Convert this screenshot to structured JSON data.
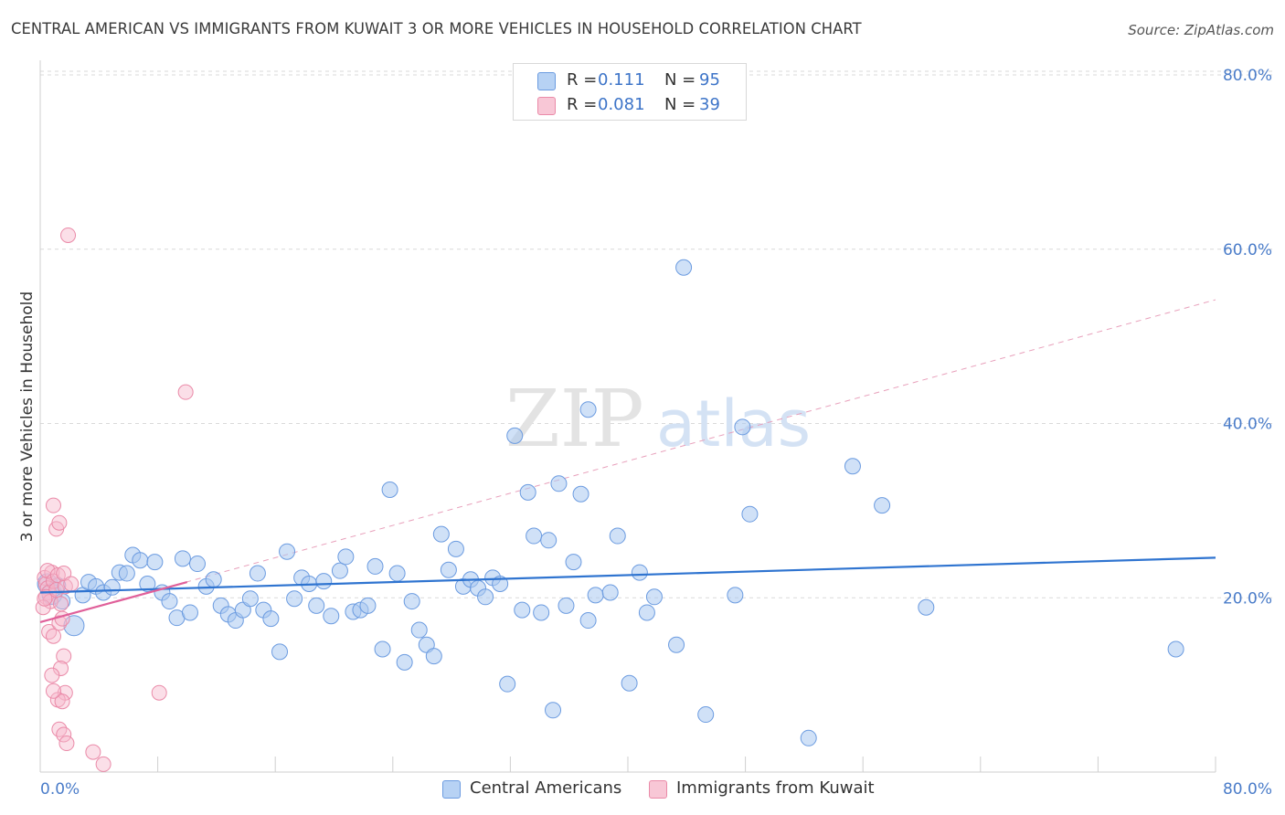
{
  "title": "CENTRAL AMERICAN VS IMMIGRANTS FROM KUWAIT 3 OR MORE VEHICLES IN HOUSEHOLD CORRELATION CHART",
  "source": "Source: ZipAtlas.com",
  "watermark": {
    "zip": "ZIP",
    "atlas": "atlas"
  },
  "legend_top": [
    {
      "r_label": "R =",
      "r_value": "0.111",
      "n_label": "N =",
      "n_value": "95"
    },
    {
      "r_label": "R =",
      "r_value": "0.081",
      "n_label": "N =",
      "n_value": "39"
    }
  ],
  "legend_bottom": [
    {
      "label": "Central Americans"
    },
    {
      "label": "Immigrants from Kuwait"
    }
  ],
  "colors": {
    "blue_fill": "#a9c8f0",
    "blue_stroke": "#6b9be0",
    "blue_line": "#2f74d0",
    "pink_fill": "#f6b8cb",
    "pink_stroke": "#ea8aa8",
    "pink_line": "#e0609a",
    "grid": "#d9d9d9",
    "tick_text": "#4a7cc9"
  },
  "chart_data": {
    "type": "scatter",
    "title": "CENTRAL AMERICAN VS IMMIGRANTS FROM KUWAIT 3 OR MORE VEHICLES IN HOUSEHOLD CORRELATION CHART",
    "xlabel": "",
    "ylabel": "3 or more Vehicles in Household",
    "xlim": [
      0,
      80
    ],
    "ylim": [
      0,
      80
    ],
    "y_ticks": [
      20,
      40,
      60,
      80
    ],
    "y_tick_labels": [
      "20.0%",
      "40.0%",
      "60.0%",
      "80.0%"
    ],
    "x_tick_labels": [
      "0.0%",
      "80.0%"
    ],
    "grid": true,
    "legend_position": "top-center",
    "series": [
      {
        "name": "Central Americans",
        "r": 0.111,
        "n": 95,
        "trend": {
          "x0": 0,
          "y0": 20.6,
          "x1": 80,
          "y1": 24.6
        },
        "points": [
          [
            0.5,
            21.6
          ],
          [
            0.8,
            20.4
          ],
          [
            1.2,
            21.4
          ],
          [
            1.5,
            19.6
          ],
          [
            2.3,
            16.8
          ],
          [
            2.9,
            20.3
          ],
          [
            3.3,
            21.8
          ],
          [
            3.8,
            21.3
          ],
          [
            4.3,
            20.6
          ],
          [
            4.9,
            21.2
          ],
          [
            5.4,
            22.9
          ],
          [
            5.9,
            22.8
          ],
          [
            6.3,
            24.9
          ],
          [
            6.8,
            24.3
          ],
          [
            7.3,
            21.6
          ],
          [
            7.8,
            24.1
          ],
          [
            8.3,
            20.6
          ],
          [
            8.8,
            19.6
          ],
          [
            9.3,
            17.7
          ],
          [
            9.7,
            24.5
          ],
          [
            10.2,
            18.3
          ],
          [
            10.7,
            23.9
          ],
          [
            11.3,
            21.3
          ],
          [
            11.8,
            22.1
          ],
          [
            12.3,
            19.1
          ],
          [
            12.8,
            18.1
          ],
          [
            13.3,
            17.4
          ],
          [
            13.8,
            18.6
          ],
          [
            14.3,
            19.9
          ],
          [
            14.8,
            22.8
          ],
          [
            15.2,
            18.6
          ],
          [
            15.7,
            17.6
          ],
          [
            16.3,
            13.8
          ],
          [
            16.8,
            25.3
          ],
          [
            17.3,
            19.9
          ],
          [
            17.8,
            22.3
          ],
          [
            18.3,
            21.6
          ],
          [
            18.8,
            19.1
          ],
          [
            19.3,
            21.9
          ],
          [
            19.8,
            17.9
          ],
          [
            20.4,
            23.1
          ],
          [
            20.8,
            24.7
          ],
          [
            21.3,
            18.4
          ],
          [
            21.8,
            18.6
          ],
          [
            22.3,
            19.1
          ],
          [
            22.8,
            23.6
          ],
          [
            23.3,
            14.1
          ],
          [
            23.8,
            32.4
          ],
          [
            24.3,
            22.8
          ],
          [
            24.8,
            12.6
          ],
          [
            25.3,
            19.6
          ],
          [
            25.8,
            16.3
          ],
          [
            26.3,
            14.6
          ],
          [
            26.8,
            13.3
          ],
          [
            27.3,
            27.3
          ],
          [
            27.8,
            23.2
          ],
          [
            28.3,
            25.6
          ],
          [
            28.8,
            21.3
          ],
          [
            29.3,
            22.1
          ],
          [
            29.8,
            21.1
          ],
          [
            30.3,
            20.1
          ],
          [
            30.8,
            22.3
          ],
          [
            31.3,
            21.6
          ],
          [
            31.8,
            10.1
          ],
          [
            32.3,
            38.6
          ],
          [
            32.8,
            18.6
          ],
          [
            33.2,
            32.1
          ],
          [
            33.6,
            27.1
          ],
          [
            34.1,
            18.3
          ],
          [
            34.6,
            26.6
          ],
          [
            34.9,
            7.1
          ],
          [
            35.3,
            33.1
          ],
          [
            35.8,
            19.1
          ],
          [
            36.3,
            24.1
          ],
          [
            36.8,
            31.9
          ],
          [
            37.3,
            41.6
          ],
          [
            37.3,
            17.4
          ],
          [
            37.8,
            20.3
          ],
          [
            38.8,
            20.6
          ],
          [
            39.3,
            27.1
          ],
          [
            40.1,
            10.2
          ],
          [
            40.8,
            22.9
          ],
          [
            41.3,
            18.3
          ],
          [
            41.8,
            20.1
          ],
          [
            43.3,
            14.6
          ],
          [
            43.8,
            57.9
          ],
          [
            45.3,
            6.6
          ],
          [
            47.3,
            20.3
          ],
          [
            47.8,
            39.6
          ],
          [
            48.3,
            29.6
          ],
          [
            52.3,
            3.9
          ],
          [
            55.3,
            35.1
          ],
          [
            57.3,
            30.6
          ],
          [
            60.3,
            18.9
          ],
          [
            77.3,
            14.1
          ]
        ]
      },
      {
        "name": "Immigrants from Kuwait",
        "r": 0.081,
        "n": 39,
        "trend": {
          "x0": 0,
          "y0": 17.2,
          "x1": 10,
          "y1": 21.8
        },
        "trend_extension": {
          "x0": 0,
          "y0": 17.2,
          "x1": 80,
          "y1": 54.2
        },
        "points": [
          [
            0.3,
            22.3
          ],
          [
            0.4,
            21.6
          ],
          [
            0.5,
            21.1
          ],
          [
            0.6,
            20.6
          ],
          [
            0.4,
            20.1
          ],
          [
            0.7,
            19.6
          ],
          [
            0.8,
            22.9
          ],
          [
            0.5,
            23.1
          ],
          [
            0.9,
            21.9
          ],
          [
            1.1,
            20.9
          ],
          [
            1.2,
            22.6
          ],
          [
            0.6,
            16.1
          ],
          [
            0.9,
            15.6
          ],
          [
            1.3,
            17.1
          ],
          [
            1.5,
            17.6
          ],
          [
            1.4,
            19.3
          ],
          [
            1.7,
            21.3
          ],
          [
            1.6,
            22.8
          ],
          [
            1.1,
            27.9
          ],
          [
            1.3,
            28.6
          ],
          [
            0.9,
            30.6
          ],
          [
            1.6,
            13.3
          ],
          [
            1.4,
            11.9
          ],
          [
            0.8,
            11.1
          ],
          [
            1.7,
            9.1
          ],
          [
            1.2,
            8.3
          ],
          [
            1.5,
            8.1
          ],
          [
            0.9,
            9.3
          ],
          [
            1.3,
            4.9
          ],
          [
            1.6,
            4.3
          ],
          [
            1.8,
            3.3
          ],
          [
            3.6,
            2.3
          ],
          [
            4.3,
            0.9
          ],
          [
            8.1,
            9.1
          ],
          [
            9.9,
            43.6
          ],
          [
            1.9,
            61.6
          ],
          [
            0.2,
            18.9
          ],
          [
            0.3,
            19.9
          ],
          [
            2.1,
            21.6
          ]
        ]
      }
    ]
  }
}
